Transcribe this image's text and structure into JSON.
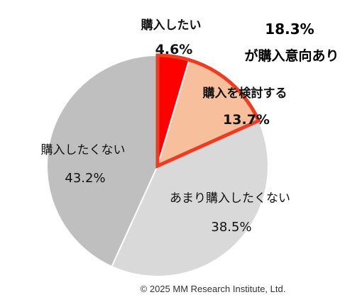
{
  "chart_data": {
    "type": "pie",
    "start_angle_deg": 0,
    "direction": "clockwise",
    "slices": [
      {
        "label": "購入したい",
        "value": 4.6,
        "value_text": "4.6%",
        "color": "#ff0000",
        "highlight": true
      },
      {
        "label": "購入を検討する",
        "value": 13.7,
        "value_text": "13.7%",
        "color": "#f8bf9c",
        "highlight": true
      },
      {
        "label": "あまり購入したくない",
        "value": 38.5,
        "value_text": "38.5%",
        "color": "#d9d9d9",
        "highlight": false
      },
      {
        "label": "購入したくない",
        "value": 43.2,
        "value_text": "43.2%",
        "color": "#bfbfbf",
        "highlight": false
      }
    ],
    "highlight_outline_color": "#ee3b22",
    "callout": {
      "value_text": "18.3%",
      "text": "が購入意向あり"
    }
  },
  "footer": {
    "copyright": "© 2025 MM Research Institute, Ltd."
  }
}
